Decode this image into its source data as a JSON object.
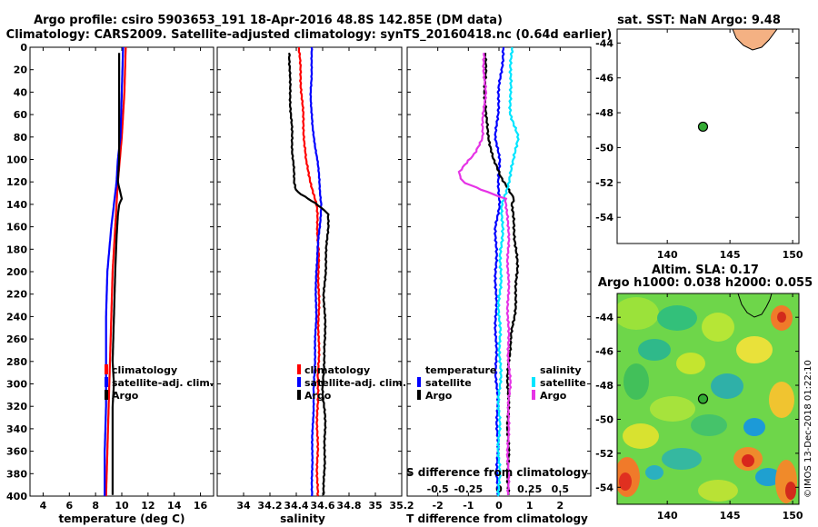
{
  "figure": {
    "title_line1": "Argo profile: csiro 5903653_191 18-Apr-2016 48.8S 142.85E (DM data)",
    "title_line2": "Climatology: CARS2009. Satellite-adjusted climatology: synTS_20160418.nc (0.64d earlier)",
    "watermark": "©IMOS 13-Dec-2018 01:22:10"
  },
  "colors": {
    "climatology": "#ff0000",
    "satellite": "#0000ff",
    "argo": "#000000",
    "sal_satellite": "#00e5ff",
    "sal_argo": "#e633e6",
    "float": "#33aa33",
    "land": "#f4b183"
  },
  "chart_data": [
    {
      "type": "line",
      "name": "temperature",
      "xlabel": "temperature (deg C)",
      "ylabel": "",
      "xlim": [
        3,
        17
      ],
      "ylim": [
        400,
        0
      ],
      "xticks": [
        "4",
        "6",
        "8",
        "10",
        "12",
        "14",
        "16"
      ],
      "xtick_values": [
        4,
        6,
        8,
        10,
        12,
        14,
        16
      ],
      "yticks": [
        "0",
        "20",
        "40",
        "60",
        "80",
        "100",
        "120",
        "140",
        "160",
        "180",
        "200",
        "220",
        "240",
        "260",
        "280",
        "300",
        "320",
        "340",
        "360",
        "380",
        "400"
      ],
      "ytick_values": [
        0,
        20,
        40,
        60,
        80,
        100,
        120,
        140,
        160,
        180,
        200,
        220,
        240,
        260,
        280,
        300,
        320,
        340,
        360,
        380,
        400
      ],
      "legend": [
        "climatology",
        "satellite-adj. clim.",
        "Argo"
      ],
      "series": [
        {
          "name": "climatology",
          "color_key": "climatology",
          "depth": [
            0,
            40,
            80,
            120,
            160,
            200,
            240,
            280,
            320,
            360,
            400
          ],
          "values": [
            10.3,
            10.2,
            10.0,
            9.7,
            9.5,
            9.3,
            9.2,
            9.1,
            9.0,
            8.9,
            8.8
          ]
        },
        {
          "name": "satellite-adj. clim.",
          "color_key": "satellite",
          "depth": [
            0,
            40,
            80,
            100,
            120,
            140,
            160,
            200,
            240,
            280,
            320,
            360,
            400
          ],
          "values": [
            10.1,
            10.0,
            9.9,
            9.7,
            9.6,
            9.4,
            9.2,
            8.9,
            8.8,
            8.8,
            8.8,
            8.7,
            8.7
          ]
        },
        {
          "name": "Argo",
          "color_key": "argo",
          "depth": [
            5,
            60,
            100,
            120,
            130,
            135,
            140,
            150,
            170,
            200,
            240,
            280,
            300,
            320,
            360,
            400
          ],
          "values": [
            9.8,
            9.8,
            9.8,
            9.7,
            9.9,
            10.0,
            9.8,
            9.7,
            9.6,
            9.5,
            9.4,
            9.3,
            9.4,
            9.3,
            9.3,
            9.3
          ]
        }
      ]
    },
    {
      "type": "line",
      "name": "salinity",
      "xlabel": "salinity",
      "ylabel": "",
      "xlim": [
        33.8,
        35.2
      ],
      "ylim": [
        400,
        0
      ],
      "xticks": [
        "34",
        "34.2",
        "34.4",
        "34.6",
        "34.8",
        "35",
        "35.2"
      ],
      "xtick_values": [
        34,
        34.2,
        34.4,
        34.6,
        34.8,
        35,
        35.2
      ],
      "legend": [
        "climatology",
        "satellite-adj. clim.",
        "Argo"
      ],
      "series": [
        {
          "name": "climatology",
          "color_key": "climatology",
          "depth": [
            0,
            20,
            40,
            60,
            80,
            100,
            120,
            140,
            150,
            200,
            240,
            280,
            320,
            360,
            400
          ],
          "values": [
            34.42,
            34.43,
            34.44,
            34.45,
            34.46,
            34.47,
            34.51,
            34.55,
            34.56,
            34.57,
            34.57,
            34.57,
            34.56,
            34.56,
            34.56
          ],
          "wobble": 0.006
        },
        {
          "name": "satellite-adj. clim.",
          "color_key": "satellite",
          "depth": [
            0,
            40,
            70,
            100,
            140,
            170,
            200,
            240,
            280,
            320,
            360,
            400
          ],
          "values": [
            34.52,
            34.51,
            34.52,
            34.56,
            34.59,
            34.57,
            34.55,
            34.55,
            34.54,
            34.53,
            34.52,
            34.52
          ],
          "wobble": 0.004
        },
        {
          "name": "Argo",
          "color_key": "argo",
          "depth": [
            5,
            30,
            60,
            90,
            105,
            120,
            128,
            140,
            148,
            160,
            180,
            220,
            260,
            300,
            340,
            380,
            400
          ],
          "values": [
            34.35,
            34.35,
            34.36,
            34.37,
            34.38,
            34.38,
            34.4,
            34.56,
            34.64,
            34.64,
            34.63,
            34.61,
            34.62,
            34.6,
            34.62,
            34.61,
            34.61
          ],
          "wobble": 0.006
        }
      ]
    },
    {
      "type": "line",
      "name": "difference",
      "xlabel": "T difference from climatology",
      "top_xlabel": "S difference from climatology",
      "xlim": [
        -3,
        3
      ],
      "ylim": [
        400,
        0
      ],
      "xticks": [
        "-2",
        "-1",
        "0",
        "1",
        "2"
      ],
      "xtick_values": [
        -2,
        -1,
        0,
        1,
        2
      ],
      "sticks": [
        "-0.5",
        "-0.25",
        "0",
        "0.25",
        "0.5"
      ],
      "stick_values": [
        -2,
        -1,
        0,
        1,
        2
      ],
      "legend_temperature_title": "temperature",
      "legend_salinity_title": "salinity",
      "legend_temperature": [
        "satellite",
        "Argo"
      ],
      "legend_salinity": [
        "satellite",
        "Argo"
      ],
      "series": [
        {
          "name": "temperature satellite",
          "color_key": "satellite",
          "depth": [
            0,
            40,
            80,
            100,
            120,
            140,
            160,
            200,
            240,
            280,
            320,
            360,
            400
          ],
          "values": [
            0.15,
            0.0,
            -0.1,
            0.0,
            0.0,
            0.0,
            -0.1,
            -0.1,
            -0.1,
            -0.1,
            -0.05,
            -0.05,
            -0.05
          ],
          "wobble": 0.04
        },
        {
          "name": "temperature Argo",
          "color_key": "argo",
          "depth": [
            5,
            60,
            100,
            115,
            125,
            135,
            140,
            160,
            200,
            240,
            280,
            320,
            360,
            400
          ],
          "values": [
            -0.45,
            -0.45,
            -0.2,
            0.05,
            0.3,
            0.5,
            0.4,
            0.5,
            0.6,
            0.5,
            0.3,
            0.3,
            0.3,
            0.3
          ],
          "wobble": 0.04
        },
        {
          "name": "salinity satellite",
          "color_key": "sal_satellite",
          "depth": [
            0,
            20,
            40,
            60,
            80,
            100,
            120,
            140,
            160,
            200,
            240,
            280,
            320,
            360,
            400
          ],
          "values": [
            0.42,
            0.4,
            0.35,
            0.4,
            0.6,
            0.5,
            0.3,
            0.12,
            0.1,
            0.05,
            0.0,
            0.05,
            0.0,
            0.0,
            0.0
          ],
          "wobble": 0.05
        },
        {
          "name": "salinity Argo",
          "color_key": "sal_argo",
          "depth": [
            5,
            40,
            80,
            95,
            105,
            112,
            120,
            128,
            135,
            150,
            200,
            260,
            300,
            340,
            400
          ],
          "values": [
            -0.5,
            -0.45,
            -0.55,
            -0.8,
            -1.1,
            -1.3,
            -1.2,
            -0.5,
            0.2,
            0.3,
            0.3,
            0.3,
            0.35,
            0.3,
            0.3
          ],
          "wobble": 0.04
        }
      ]
    },
    {
      "type": "scatter",
      "name": "sst_map",
      "title": "sat. SST: NaN Argo: 9.48",
      "xlim": [
        136,
        150.5
      ],
      "ylim": [
        -55.5,
        -43.2
      ],
      "xticks": [
        "140",
        "145",
        "150"
      ],
      "xtick_values": [
        140,
        145,
        150
      ],
      "yticks": [
        "-44",
        "-46",
        "-48",
        "-50",
        "-52",
        "-54"
      ],
      "ytick_values": [
        -44,
        -46,
        -48,
        -50,
        -52,
        -54
      ],
      "points": [
        {
          "label": "Argo float",
          "x": 142.85,
          "y": -48.8
        }
      ]
    },
    {
      "type": "heatmap",
      "name": "sla_map",
      "title_line1": "Altim. SLA: 0.17",
      "title_line2": "Argo h1000: 0.038 h2000: 0.055",
      "xlim": [
        136,
        150.5
      ],
      "ylim": [
        -55,
        -42.6
      ],
      "xticks": [
        "140",
        "145",
        "150"
      ],
      "xtick_values": [
        140,
        145,
        150
      ],
      "yticks": [
        "-44",
        "-46",
        "-48",
        "-50",
        "-52",
        "-54"
      ],
      "ytick_values": [
        -44,
        -46,
        -48,
        -50,
        -52,
        -54
      ],
      "points": [
        {
          "label": "Argo float",
          "x": 142.85,
          "y": -48.8
        }
      ]
    }
  ]
}
